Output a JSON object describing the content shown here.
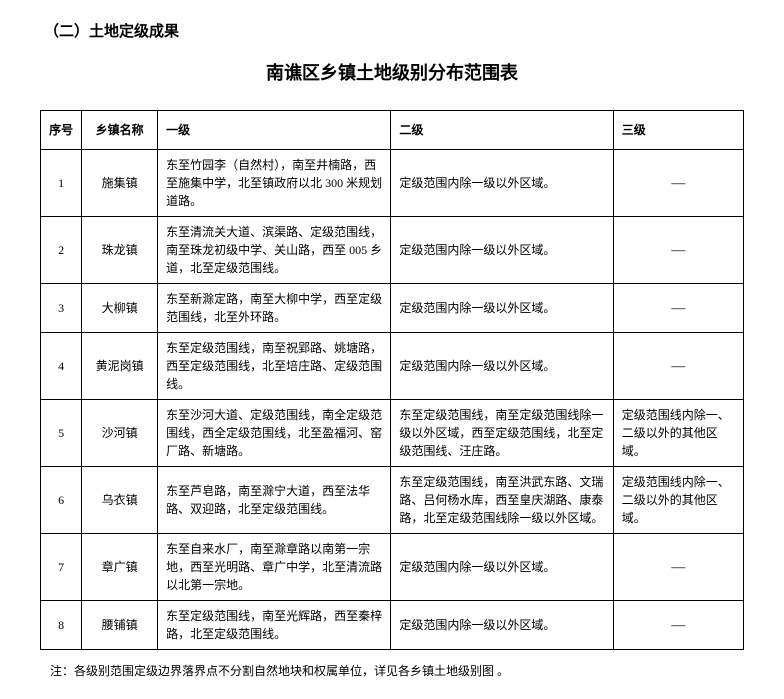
{
  "section_heading": "（二）土地定级成果",
  "table_title": "南谯区乡镇土地级别分布范围表",
  "columns": {
    "index": "序号",
    "name": "乡镇名称",
    "level1": "一级",
    "level2": "二级",
    "level3": "三级"
  },
  "dash": "—",
  "rows": [
    {
      "index": "1",
      "name": "施集镇",
      "level1": "东至竹园李（自然村），南至井楠路，西至施集中学，北至镇政府以北 300 米规划道路。",
      "level2": "定级范围内除一级以外区域。",
      "level3": "—"
    },
    {
      "index": "2",
      "name": "珠龙镇",
      "level1": "东至清流关大道、滨渠路、定级范围线，南至珠龙初级中学、关山路，西至 005 乡道，北至定级范围线。",
      "level2": "定级范围内除一级以外区域。",
      "level3": "—"
    },
    {
      "index": "3",
      "name": "大柳镇",
      "level1": "东至新滁定路，南至大柳中学，西至定级范围线，北至外环路。",
      "level2": "定级范围内除一级以外区域。",
      "level3": "—"
    },
    {
      "index": "4",
      "name": "黄泥岗镇",
      "level1": "东至定级范围线，南至祝郢路、姚塘路，西至定级范围线，北至培庄路、定级范围线。",
      "level2": "定级范围内除一级以外区域。",
      "level3": "—"
    },
    {
      "index": "5",
      "name": "沙河镇",
      "level1": "东至沙河大道、定级范围线，南全定级范围线，西全定级范围线，北至盈福河、窑厂路、新塘路。",
      "level2": "东至定级范围线，南至定级范围线除一级以外区域，西至定级范围线，北至定级范围线、汪庄路。",
      "level3": "定级范围线内除一、二级以外的其他区域。"
    },
    {
      "index": "6",
      "name": "乌衣镇",
      "level1": "东至芦皂路，南至滁宁大道，西至法华路、双迎路，北至定级范围线。",
      "level2": "东至定级范围线，南至洪武东路、文瑞路、吕何杨水库，西至皇庆湖路、康泰路，北至定级范围线除一级以外区域。",
      "level3": "定级范围线内除一、二级以外的其他区域。"
    },
    {
      "index": "7",
      "name": "章广镇",
      "level1": "东至自来水厂，南至滁章路以南第一宗地，西至光明路、章广中学，北至清流路以北第一宗地。",
      "level2": "定级范围内除一级以外区域。",
      "level3": "—"
    },
    {
      "index": "8",
      "name": "腰铺镇",
      "level1": "东至定级范围线，南至光辉路，西至秦梓路，北至定级范围线。",
      "level2": "定级范围内除一级以外区域。",
      "level3": "—"
    }
  ],
  "footnote": "注：各级别范围定级边界落界点不分割自然地块和权属单位，详见各乡镇土地级别图 。"
}
